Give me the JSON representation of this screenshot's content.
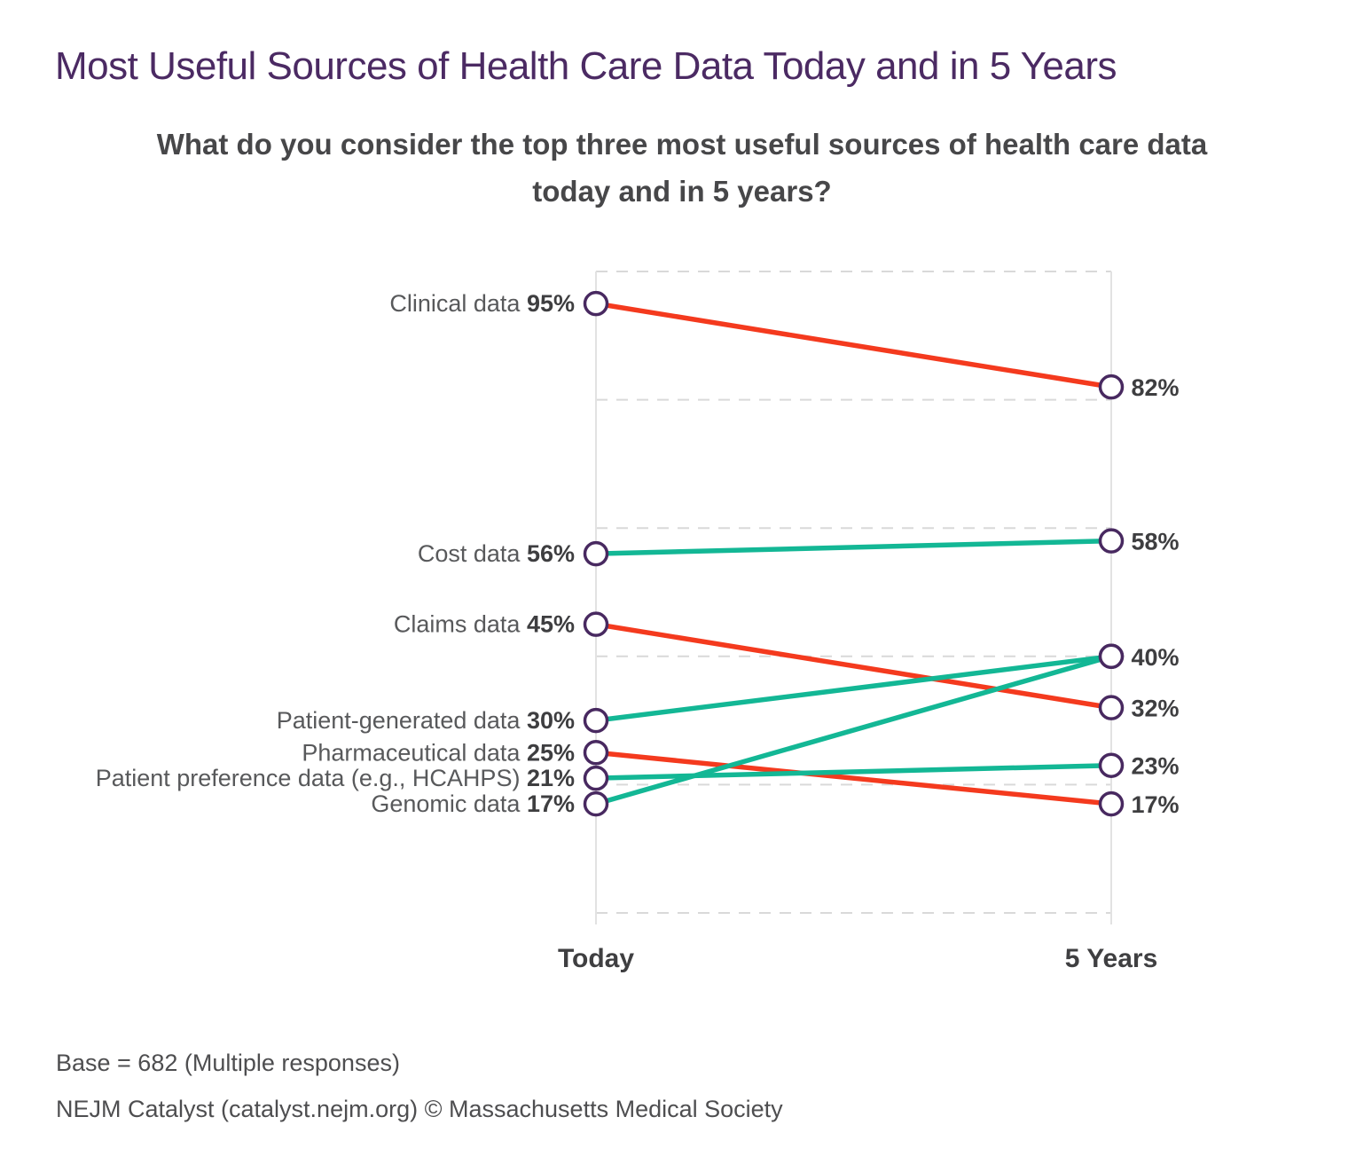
{
  "header": {
    "title": "Most Useful Sources of Health Care Data Today and in 5 Years",
    "question_line1": "What do you consider the top three most useful sources of health care data",
    "question_line2": "today and in 5 years?"
  },
  "chart_data": {
    "type": "line",
    "subtype": "slopegraph",
    "categories": [
      "Today",
      "5 Years"
    ],
    "unit": "%",
    "ylim": [
      0,
      100
    ],
    "gridlines_pct": [
      0,
      20,
      40,
      60,
      80,
      100
    ],
    "grid": "dashed-horizontal",
    "legend_position": "none",
    "series": [
      {
        "name": "Clinical data",
        "values": [
          95,
          82
        ],
        "trend": "down"
      },
      {
        "name": "Cost data",
        "values": [
          56,
          58
        ],
        "trend": "up"
      },
      {
        "name": "Claims data",
        "values": [
          45,
          32
        ],
        "trend": "down"
      },
      {
        "name": "Patient-generated data",
        "values": [
          30,
          40
        ],
        "trend": "up"
      },
      {
        "name": "Pharmaceutical data",
        "values": [
          25,
          17
        ],
        "trend": "down"
      },
      {
        "name": "Patient preference data (e.g., HCAHPS)",
        "values": [
          21,
          23
        ],
        "trend": "up"
      },
      {
        "name": "Genomic data",
        "values": [
          17,
          40
        ],
        "trend": "up"
      }
    ],
    "colors": {
      "up": "#13b795",
      "down": "#f43a1e",
      "marker_stroke": "#482960",
      "marker_fill": "#ffffff",
      "gridline": "#d9d9d9",
      "axis_line": "#e2e2e2"
    }
  },
  "footer": {
    "base": "Base = 682 (Multiple responses)",
    "source": "NEJM Catalyst (catalyst.nejm.org) © Massachusetts Medical Society"
  }
}
